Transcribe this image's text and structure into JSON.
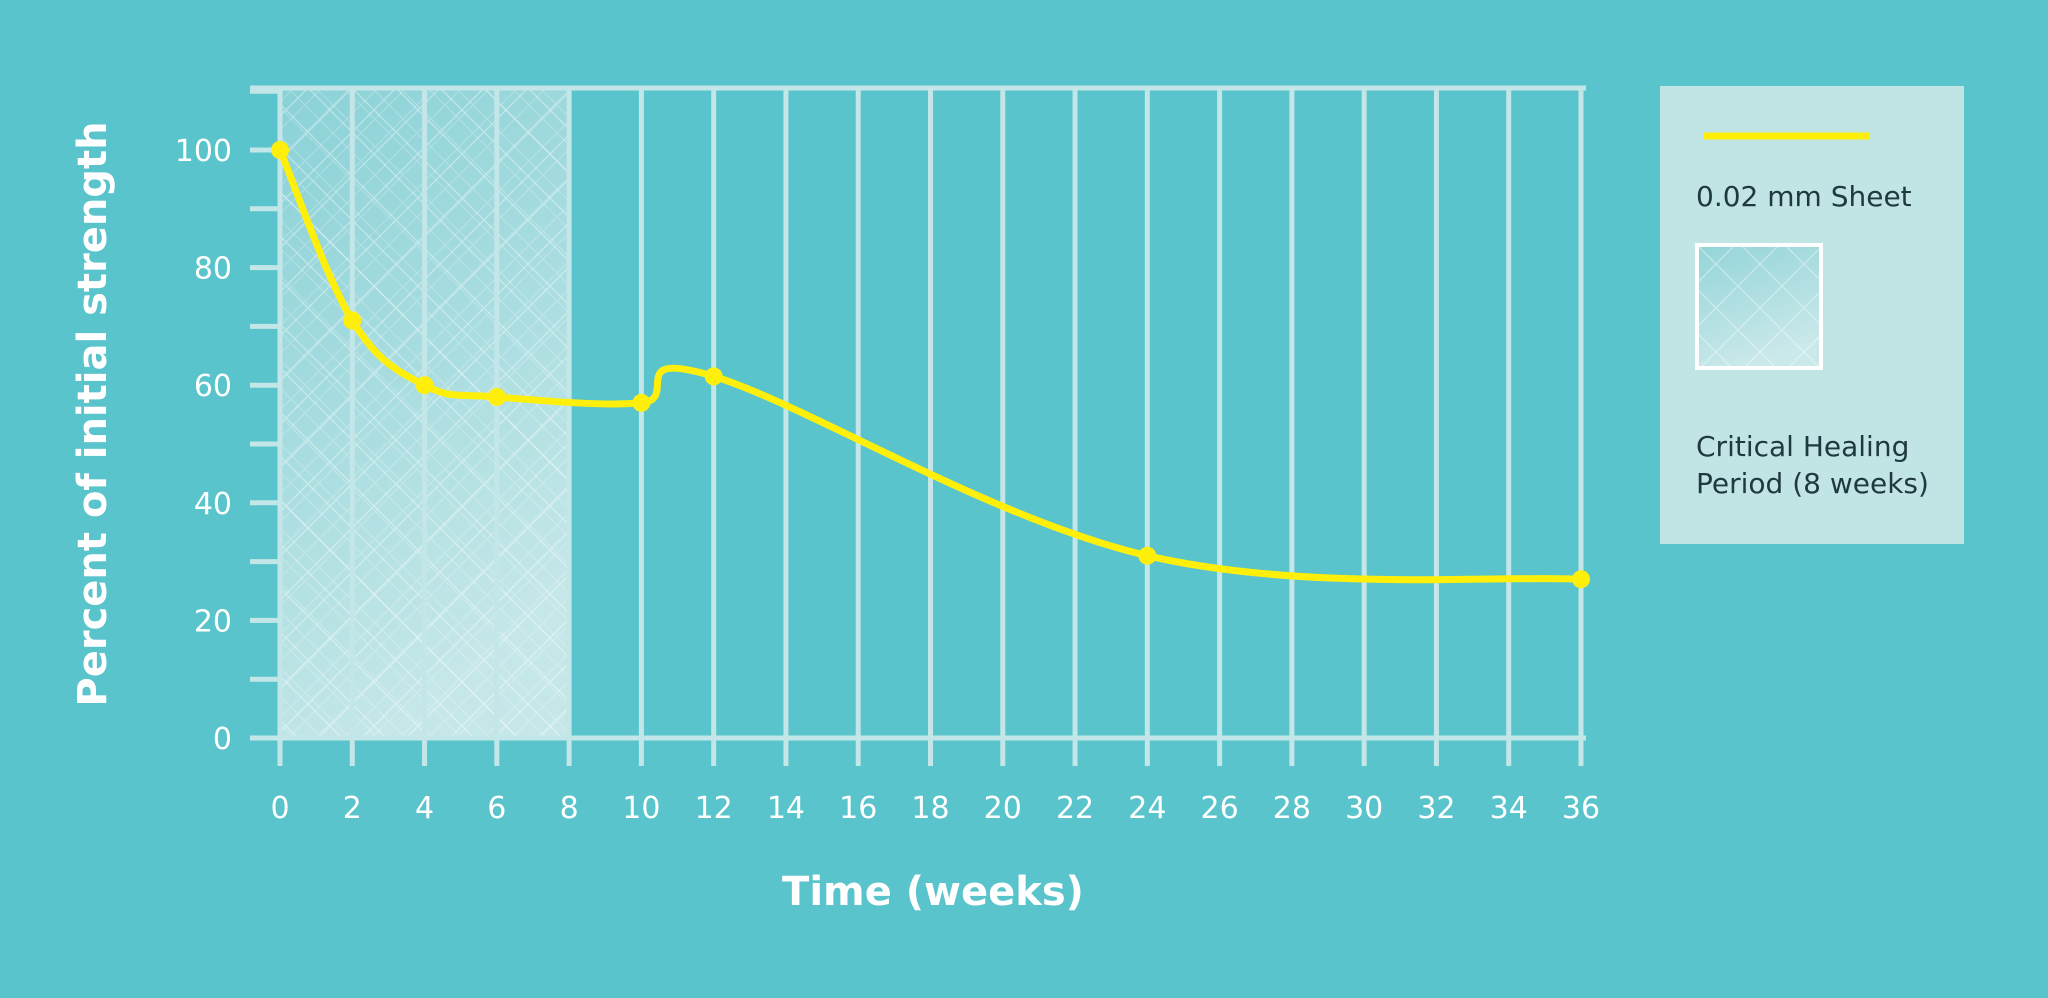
{
  "chart_data": {
    "type": "line",
    "xlabel": "Time (weeks)",
    "ylabel": "Percent of initial strength",
    "xlim": [
      0,
      36
    ],
    "ylim": [
      0,
      110
    ],
    "x_ticks": [
      "0",
      "2",
      "4",
      "6",
      "8",
      "10",
      "12",
      "14",
      "16",
      "18",
      "20",
      "22",
      "24",
      "26",
      "28",
      "30",
      "32",
      "34",
      "36"
    ],
    "y_ticks": [
      "0",
      "20",
      "40",
      "60",
      "80",
      "100"
    ],
    "series": [
      {
        "name": "0.02 mm Sheet",
        "color": "#ffef0a",
        "x": [
          0,
          2,
          4,
          6,
          10,
          12,
          24,
          36
        ],
        "y": [
          100,
          71,
          60,
          58,
          57,
          61.5,
          31,
          27
        ]
      }
    ],
    "shaded_region": {
      "label": "Critical Healing Period (8 weeks)",
      "x_start": 0,
      "x_end": 8
    },
    "grid": true,
    "legend": {
      "position": "right",
      "items": [
        {
          "label": "0.02 mm Sheet",
          "kind": "line"
        },
        {
          "label_lines": [
            "Critical Healing",
            "Period (8 weeks)"
          ],
          "kind": "hatched-box"
        }
      ]
    },
    "colors": {
      "background": "#59c4cb",
      "grid": "#c3e6e8",
      "line": "#ffef0a",
      "legend_bg": "#c1e4e5",
      "legend_text": "#1f3a3f"
    }
  }
}
